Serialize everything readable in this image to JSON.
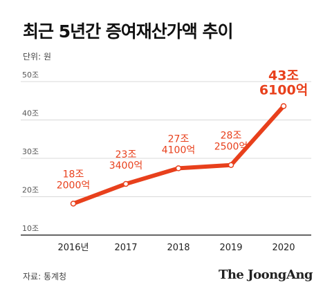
{
  "title": "최근 5년간 증여재산가액 추이",
  "unit_label": "단위: 원",
  "source": "자료: 통계청",
  "brand": "The JoongAng",
  "colors": {
    "line": "#e8401c",
    "axis": "#333333",
    "grid": "#d8d8d8",
    "tick_text": "#555555"
  },
  "chart_data": {
    "type": "line",
    "title": "최근 5년간 증여재산가액 추이",
    "xlabel": "",
    "ylabel": "",
    "categories": [
      "2016년",
      "2017",
      "2018",
      "2019",
      "2020"
    ],
    "values": [
      18.2,
      23.34,
      27.41,
      28.25,
      43.61
    ],
    "data_labels": [
      [
        "18조",
        "2000억"
      ],
      [
        "23조",
        "3400억"
      ],
      [
        "27조",
        "4100억"
      ],
      [
        "28조",
        "2500억"
      ],
      [
        "43조",
        "6100억"
      ]
    ],
    "ylim": [
      10,
      50
    ],
    "yticks": [
      10,
      20,
      30,
      40,
      50
    ],
    "ytick_labels": [
      "10조",
      "20조",
      "30조",
      "40조",
      "50조"
    ],
    "grid": true
  }
}
